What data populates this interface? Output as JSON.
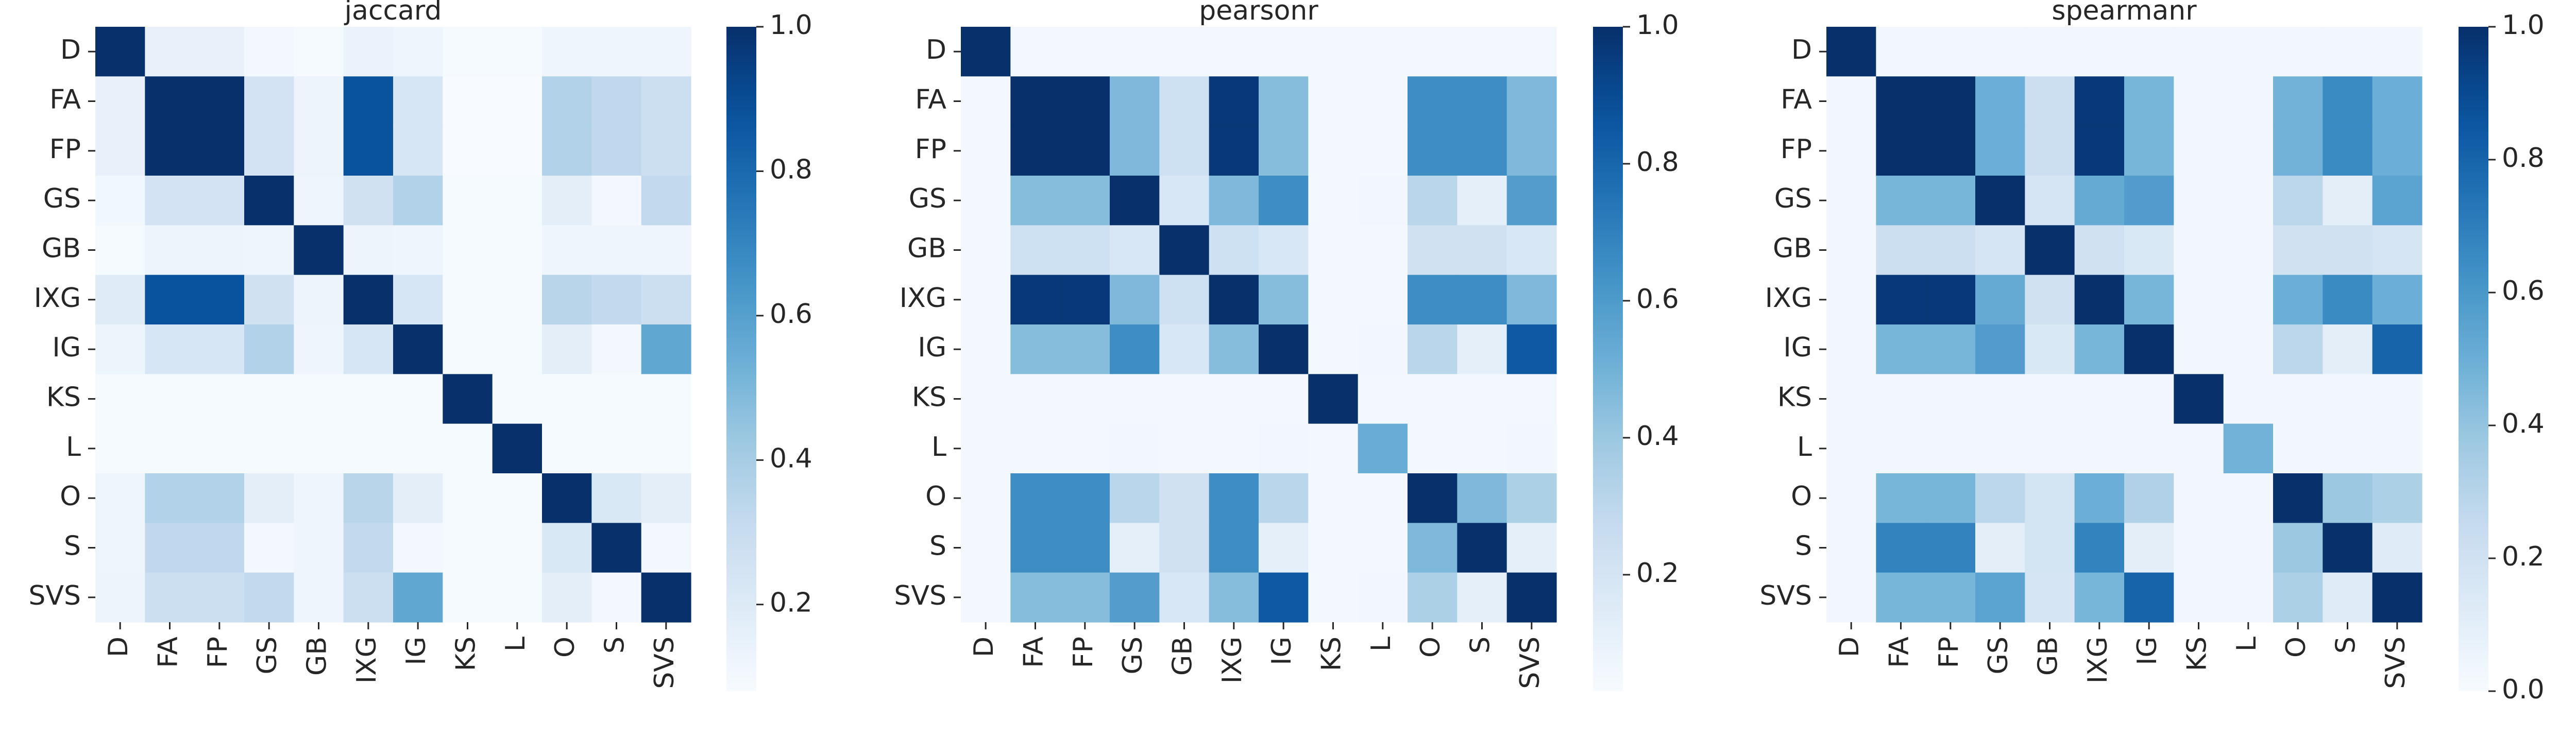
{
  "chart_data": [
    {
      "type": "heatmap",
      "title": "jaccard",
      "categories": [
        "D",
        "FA",
        "FP",
        "GS",
        "GB",
        "IXG",
        "IG",
        "KS",
        "L",
        "O",
        "S",
        "SVS"
      ],
      "colorbar": {
        "range": [
          0.08,
          1.0
        ],
        "ticks": [
          "0.2",
          "0.4",
          "0.6",
          "0.8",
          "1.0"
        ],
        "tick_values": [
          0.2,
          0.4,
          0.6,
          0.8,
          1.0
        ]
      },
      "values": [
        [
          1.0,
          0.15,
          0.15,
          0.1,
          0.09,
          0.14,
          0.12,
          0.09,
          0.09,
          0.12,
          0.12,
          0.12
        ],
        [
          0.15,
          1.0,
          1.0,
          0.25,
          0.13,
          0.88,
          0.23,
          0.08,
          0.08,
          0.37,
          0.33,
          0.28
        ],
        [
          0.15,
          1.0,
          1.0,
          0.25,
          0.13,
          0.88,
          0.23,
          0.08,
          0.08,
          0.37,
          0.33,
          0.28
        ],
        [
          0.11,
          0.25,
          0.25,
          1.0,
          0.12,
          0.26,
          0.37,
          0.09,
          0.09,
          0.17,
          0.1,
          0.32
        ],
        [
          0.09,
          0.13,
          0.13,
          0.12,
          1.0,
          0.13,
          0.12,
          0.09,
          0.09,
          0.12,
          0.12,
          0.12
        ],
        [
          0.19,
          0.88,
          0.88,
          0.26,
          0.13,
          1.0,
          0.23,
          0.09,
          0.09,
          0.35,
          0.32,
          0.28
        ],
        [
          0.13,
          0.23,
          0.23,
          0.37,
          0.12,
          0.23,
          1.0,
          0.09,
          0.09,
          0.17,
          0.1,
          0.57
        ],
        [
          0.09,
          0.09,
          0.09,
          0.09,
          0.09,
          0.09,
          0.09,
          1.0,
          0.09,
          0.09,
          0.09,
          0.09
        ],
        [
          0.09,
          0.09,
          0.09,
          0.09,
          0.09,
          0.09,
          0.09,
          0.09,
          1.0,
          0.09,
          0.09,
          0.09
        ],
        [
          0.12,
          0.37,
          0.37,
          0.17,
          0.12,
          0.35,
          0.17,
          0.09,
          0.09,
          1.0,
          0.22,
          0.17
        ],
        [
          0.12,
          0.33,
          0.33,
          0.1,
          0.12,
          0.32,
          0.1,
          0.09,
          0.09,
          0.22,
          1.0,
          0.1
        ],
        [
          0.13,
          0.28,
          0.28,
          0.32,
          0.12,
          0.28,
          0.57,
          0.09,
          0.09,
          0.17,
          0.1,
          1.0
        ]
      ]
    },
    {
      "type": "heatmap",
      "title": "pearsonr",
      "categories": [
        "D",
        "FA",
        "FP",
        "GS",
        "GB",
        "IXG",
        "IG",
        "KS",
        "L",
        "O",
        "S",
        "SVS"
      ],
      "colorbar": {
        "range": [
          0.03,
          1.0
        ],
        "ticks": [
          "0.2",
          "0.4",
          "0.6",
          "0.8",
          "1.0"
        ],
        "tick_values": [
          0.2,
          0.4,
          0.6,
          0.8,
          1.0
        ]
      },
      "values": [
        [
          1.0,
          0.05,
          0.05,
          0.05,
          0.05,
          0.05,
          0.05,
          0.05,
          0.05,
          0.05,
          0.05,
          0.05
        ],
        [
          0.05,
          1.0,
          1.0,
          0.47,
          0.23,
          0.97,
          0.45,
          0.05,
          0.05,
          0.65,
          0.65,
          0.47
        ],
        [
          0.05,
          1.0,
          1.0,
          0.47,
          0.23,
          0.97,
          0.45,
          0.05,
          0.05,
          0.65,
          0.65,
          0.47
        ],
        [
          0.05,
          0.45,
          0.45,
          1.0,
          0.18,
          0.47,
          0.65,
          0.05,
          0.06,
          0.31,
          0.12,
          0.59
        ],
        [
          0.05,
          0.23,
          0.23,
          0.18,
          1.0,
          0.23,
          0.18,
          0.05,
          0.05,
          0.22,
          0.22,
          0.18
        ],
        [
          0.05,
          0.97,
          0.97,
          0.47,
          0.23,
          1.0,
          0.45,
          0.05,
          0.05,
          0.65,
          0.65,
          0.47
        ],
        [
          0.05,
          0.45,
          0.45,
          0.65,
          0.18,
          0.45,
          1.0,
          0.05,
          0.06,
          0.31,
          0.12,
          0.85
        ],
        [
          0.05,
          0.05,
          0.05,
          0.05,
          0.05,
          0.05,
          0.05,
          1.0,
          0.05,
          0.05,
          0.05,
          0.05
        ],
        [
          0.05,
          0.05,
          0.05,
          0.06,
          0.05,
          0.05,
          0.06,
          0.05,
          0.52,
          0.05,
          0.05,
          0.06
        ],
        [
          0.05,
          0.65,
          0.65,
          0.31,
          0.22,
          0.65,
          0.31,
          0.05,
          0.05,
          1.0,
          0.47,
          0.35
        ],
        [
          0.05,
          0.65,
          0.65,
          0.12,
          0.22,
          0.65,
          0.12,
          0.05,
          0.05,
          0.47,
          1.0,
          0.12
        ],
        [
          0.05,
          0.45,
          0.45,
          0.59,
          0.18,
          0.45,
          0.85,
          0.05,
          0.06,
          0.35,
          0.12,
          1.0
        ]
      ]
    },
    {
      "type": "heatmap",
      "title": "spearmanr",
      "categories": [
        "D",
        "FA",
        "FP",
        "GS",
        "GB",
        "IXG",
        "IG",
        "KS",
        "L",
        "O",
        "S",
        "SVS"
      ],
      "colorbar": {
        "range": [
          0.0,
          1.0
        ],
        "ticks": [
          "0.0",
          "0.2",
          "0.4",
          "0.6",
          "0.8",
          "1.0"
        ],
        "tick_values": [
          0.0,
          0.2,
          0.4,
          0.6,
          0.8,
          1.0
        ]
      },
      "values": [
        [
          1.0,
          0.03,
          0.03,
          0.03,
          0.03,
          0.03,
          0.03,
          0.03,
          0.03,
          0.03,
          0.03,
          0.03
        ],
        [
          0.03,
          1.0,
          1.0,
          0.5,
          0.22,
          0.97,
          0.47,
          0.03,
          0.03,
          0.48,
          0.65,
          0.5
        ],
        [
          0.03,
          1.0,
          1.0,
          0.5,
          0.22,
          0.97,
          0.47,
          0.03,
          0.03,
          0.48,
          0.65,
          0.5
        ],
        [
          0.03,
          0.47,
          0.47,
          1.0,
          0.17,
          0.52,
          0.58,
          0.03,
          0.03,
          0.28,
          0.1,
          0.55
        ],
        [
          0.03,
          0.22,
          0.22,
          0.17,
          1.0,
          0.2,
          0.15,
          0.03,
          0.03,
          0.2,
          0.2,
          0.17
        ],
        [
          0.03,
          0.97,
          0.97,
          0.52,
          0.2,
          1.0,
          0.47,
          0.03,
          0.03,
          0.5,
          0.65,
          0.5
        ],
        [
          0.03,
          0.47,
          0.47,
          0.58,
          0.15,
          0.47,
          1.0,
          0.03,
          0.03,
          0.28,
          0.1,
          0.8
        ],
        [
          0.03,
          0.03,
          0.03,
          0.03,
          0.03,
          0.03,
          0.03,
          1.0,
          0.03,
          0.03,
          0.03,
          0.03
        ],
        [
          0.03,
          0.03,
          0.03,
          0.03,
          0.03,
          0.03,
          0.03,
          0.03,
          0.48,
          0.03,
          0.03,
          0.03
        ],
        [
          0.03,
          0.47,
          0.47,
          0.28,
          0.18,
          0.5,
          0.32,
          0.03,
          0.03,
          1.0,
          0.38,
          0.33
        ],
        [
          0.03,
          0.68,
          0.68,
          0.1,
          0.18,
          0.68,
          0.1,
          0.03,
          0.03,
          0.38,
          1.0,
          0.12
        ],
        [
          0.03,
          0.47,
          0.47,
          0.55,
          0.17,
          0.47,
          0.8,
          0.03,
          0.03,
          0.33,
          0.12,
          1.0
        ]
      ]
    }
  ],
  "colormap": [
    "#f7fbff",
    "#deebf7",
    "#c6dbef",
    "#9ecae1",
    "#6baed6",
    "#4292c6",
    "#2171b5",
    "#08519c",
    "#08306b"
  ]
}
